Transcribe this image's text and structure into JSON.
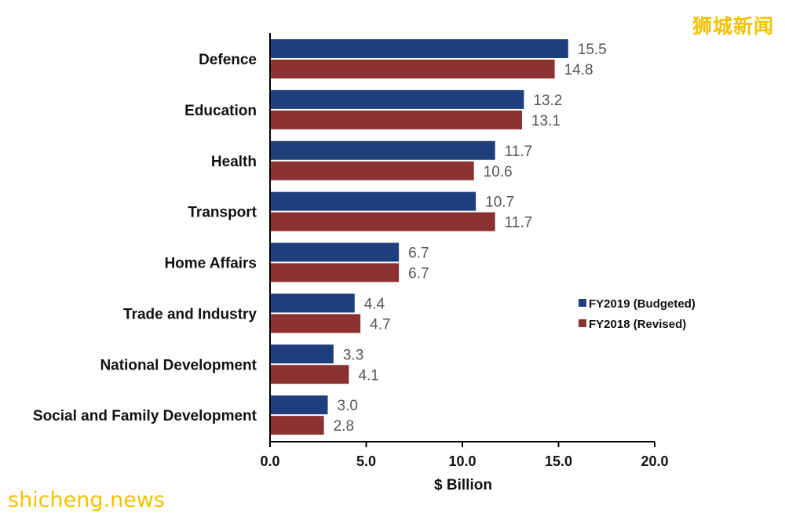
{
  "chart_data": {
    "type": "bar",
    "orientation": "horizontal",
    "categories": [
      "Defence",
      "Education",
      "Health",
      "Transport",
      "Home Affairs",
      "Trade and Industry",
      "National Development",
      "Social and Family Development"
    ],
    "series": [
      {
        "name": "FY2019 (Budgeted)",
        "color": "#1f3e7c",
        "values": [
          15.5,
          13.2,
          11.7,
          10.7,
          6.7,
          4.4,
          3.3,
          3.0
        ]
      },
      {
        "name": "FY2018 (Revised)",
        "color": "#8b3131",
        "values": [
          14.8,
          13.1,
          10.6,
          11.7,
          6.7,
          4.7,
          4.1,
          2.8
        ]
      }
    ],
    "value_labels": [
      [
        "15.5",
        "13.2",
        "11.7",
        "10.7",
        "6.7",
        "4.4",
        "3.3",
        "3.0"
      ],
      [
        "14.8",
        "13.1",
        "10.6",
        "11.7",
        "6.7",
        "4.7",
        "4.1",
        "2.8"
      ]
    ],
    "xlabel": "$ Billion",
    "xlim": [
      0,
      20
    ],
    "xticks": [
      "0.0",
      "5.0",
      "10.0",
      "15.0",
      "20.0"
    ],
    "xtick_values": [
      0,
      5,
      10,
      15,
      20
    ],
    "grid": false,
    "legend_position": "right"
  },
  "watermarks": {
    "cn": "狮城新闻",
    "en": "shicheng.news"
  }
}
